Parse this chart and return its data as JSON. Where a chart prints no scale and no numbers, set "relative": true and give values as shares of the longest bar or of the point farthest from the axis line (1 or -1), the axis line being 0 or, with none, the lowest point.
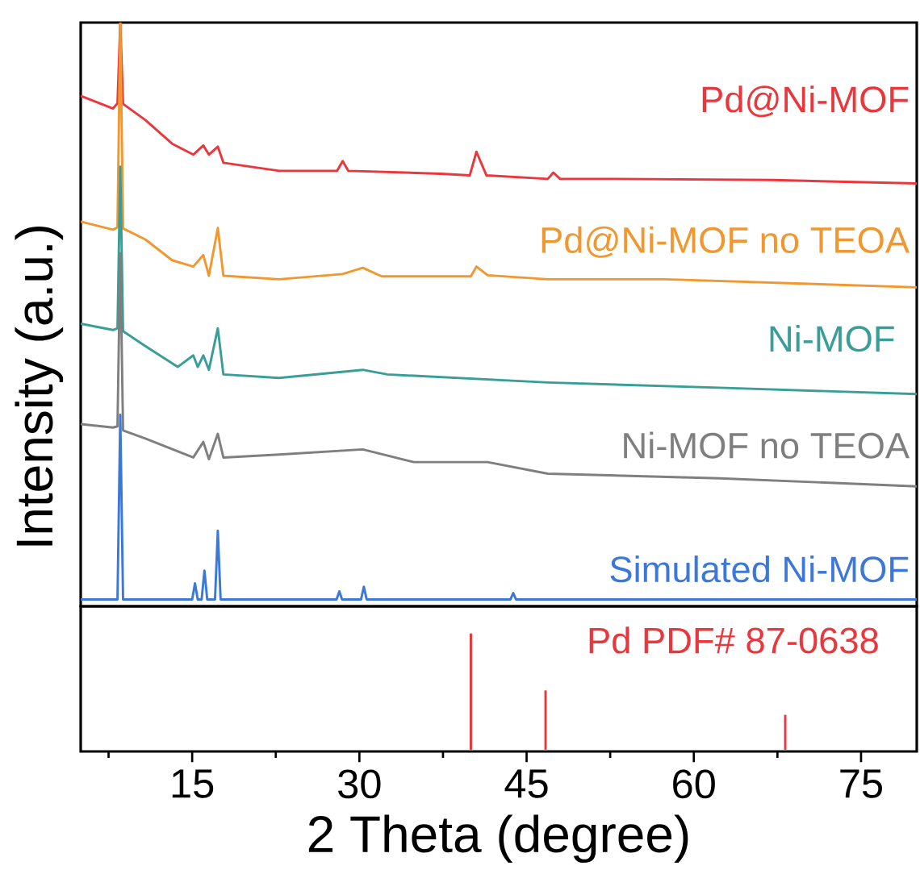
{
  "chart_data": [
    {
      "type": "line",
      "relative": true,
      "ylabel": "Intensity (a.u.)",
      "xlim": [
        5,
        80
      ],
      "tick_labels": false,
      "series": [
        {
          "name": "Pd@Ni-MOF",
          "color": "#e8383d",
          "x": [
            5,
            7.9,
            8.3,
            8.55,
            8.8,
            10.8,
            13.2,
            15.1,
            16.0,
            16.5,
            17.3,
            17.8,
            22.8,
            28.0,
            28.5,
            29,
            37.3,
            39.9,
            40.5,
            41.4,
            46.9,
            47.4,
            48,
            52.7,
            67.1,
            80
          ],
          "values": [
            0.873,
            0.851,
            0.86,
            1.0,
            0.859,
            0.831,
            0.79,
            0.771,
            0.787,
            0.771,
            0.785,
            0.757,
            0.743,
            0.743,
            0.76,
            0.743,
            0.738,
            0.735,
            0.776,
            0.735,
            0.729,
            0.74,
            0.729,
            0.729,
            0.727,
            0.721
          ]
        },
        {
          "name": "Pd@Ni-MOF no TEOA",
          "color": "#f0982f",
          "x": [
            5,
            7.9,
            8.3,
            8.55,
            8.8,
            10.8,
            13.2,
            15.1,
            16.0,
            16.5,
            17.3,
            17.8,
            22.8,
            28.5,
            30.3,
            32,
            40,
            40.5,
            41.5,
            46.9,
            57.4,
            80
          ],
          "values": [
            0.655,
            0.641,
            0.645,
            1.0,
            0.643,
            0.624,
            0.588,
            0.577,
            0.597,
            0.561,
            0.644,
            0.561,
            0.555,
            0.564,
            0.575,
            0.56,
            0.56,
            0.577,
            0.562,
            0.555,
            0.555,
            0.541
          ]
        },
        {
          "name": "Ni-MOF",
          "color": "#3a9e98",
          "x": [
            5,
            7.9,
            8.3,
            8.55,
            8.8,
            10.8,
            13.7,
            15.1,
            15.5,
            16.0,
            16.5,
            17.3,
            17.8,
            22.8,
            30.3,
            32.5,
            46.9,
            62.3,
            80
          ],
          "values": [
            0.478,
            0.467,
            0.47,
            0.75,
            0.465,
            0.439,
            0.403,
            0.423,
            0.403,
            0.423,
            0.398,
            0.47,
            0.39,
            0.384,
            0.398,
            0.39,
            0.376,
            0.367,
            0.356
          ]
        },
        {
          "name": "Ni-MOF no TEOA",
          "color": "#7f7f7f",
          "x": [
            5,
            7.9,
            8.3,
            8.55,
            8.8,
            10.8,
            15.1,
            16.0,
            16.5,
            17.3,
            17.8,
            22.8,
            30.3,
            34.9,
            41.5,
            46.9,
            62.3,
            80
          ],
          "values": [
            0.304,
            0.298,
            0.3,
            0.6,
            0.293,
            0.279,
            0.246,
            0.273,
            0.243,
            0.287,
            0.246,
            0.251,
            0.26,
            0.238,
            0.238,
            0.218,
            0.21,
            0.196
          ]
        },
        {
          "name": "Simulated Ni-MOF",
          "color": "#3c78d8",
          "x": [
            5,
            8.3,
            8.55,
            8.8,
            15.0,
            15.25,
            15.5,
            15.85,
            16.1,
            16.35,
            17.05,
            17.3,
            17.55,
            27.95,
            28.2,
            28.45,
            30.15,
            30.4,
            30.65,
            43.55,
            43.8,
            44.05,
            80
          ],
          "values": [
            0,
            0,
            0.32,
            0,
            0,
            0.028,
            0,
            0,
            0.05,
            0,
            0,
            0.119,
            0,
            0,
            0.014,
            0,
            0,
            0.022,
            0,
            0,
            0.011,
            0,
            0
          ]
        }
      ]
    },
    {
      "type": "line",
      "relative": true,
      "xlabel": "2 Theta (degree)",
      "xlim": [
        5,
        80
      ],
      "tick_labels": "x",
      "xticks": [
        {
          "value": 7.5,
          "label": null
        },
        15,
        {
          "value": 22.5,
          "label": null
        },
        30,
        {
          "value": 37.5,
          "label": null
        },
        45,
        {
          "value": 52.5,
          "label": null
        },
        60,
        {
          "value": 67.5,
          "label": null
        },
        75
      ],
      "series": [
        {
          "name": "Pd PDF# 87-0638",
          "color": "#e8383d",
          "x": [
            40.0,
            40.0
          ],
          "values": [
            0,
            1
          ]
        },
        {
          "color": "#e8383d",
          "x": [
            46.7,
            46.7
          ],
          "values": [
            0,
            0.51
          ]
        },
        {
          "color": "#e8383d",
          "x": [
            68.2,
            68.2
          ],
          "values": [
            0,
            0.3
          ]
        }
      ]
    }
  ]
}
